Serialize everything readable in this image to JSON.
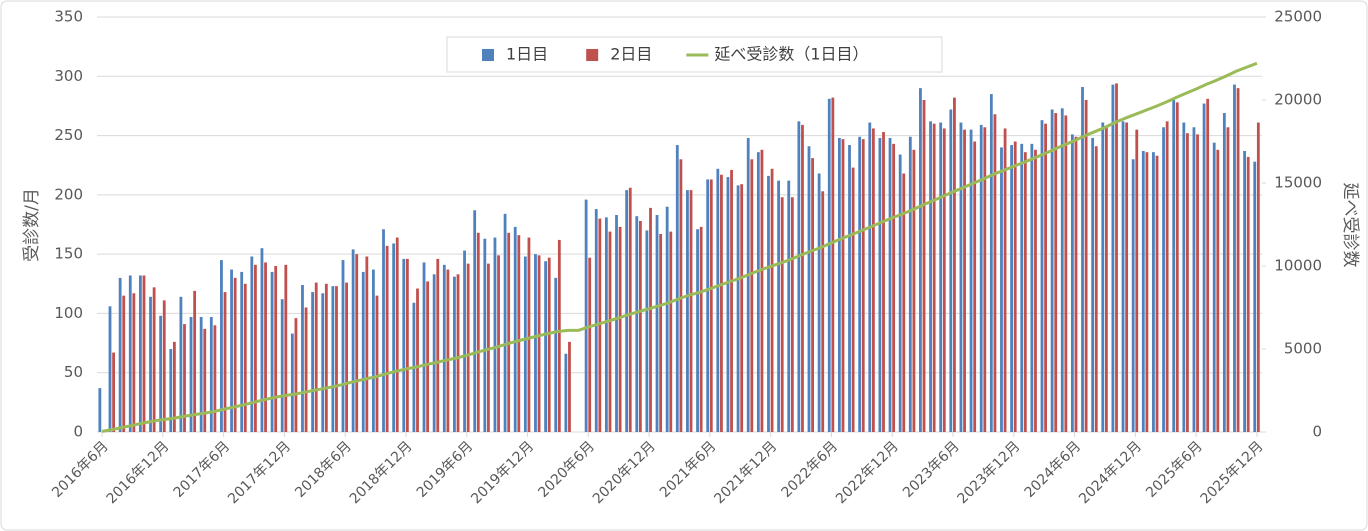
{
  "chart_data": {
    "type": "bar",
    "categories": [
      "2016年6月",
      null,
      null,
      null,
      null,
      null,
      "2016年12月",
      null,
      null,
      null,
      null,
      null,
      "2017年6月",
      null,
      null,
      null,
      null,
      null,
      "2017年12月",
      null,
      null,
      null,
      null,
      null,
      "2018年6月",
      null,
      null,
      null,
      null,
      null,
      "2018年12月",
      null,
      null,
      null,
      null,
      null,
      "2019年6月",
      null,
      null,
      null,
      null,
      null,
      "2019年12月",
      null,
      null,
      null,
      null,
      null,
      "2020年6月",
      null,
      null,
      null,
      null,
      null,
      "2020年12月",
      null,
      null,
      null,
      null,
      null,
      "2021年6月",
      null,
      null,
      null,
      null,
      null,
      "2021年12月",
      null,
      null,
      null,
      null,
      null,
      "2022年6月",
      null,
      null,
      null,
      null,
      null,
      "2022年12月",
      null,
      null,
      null,
      null,
      null,
      "2023年6月",
      null,
      null,
      null,
      null,
      null,
      "2023年12月",
      null,
      null,
      null,
      null,
      null,
      "2024年6月",
      null,
      null,
      null,
      null,
      null,
      "2024年12月",
      null,
      null,
      null,
      null,
      null,
      "2025年6月",
      null,
      null,
      null,
      null,
      null,
      "2025年12月"
    ],
    "series": [
      {
        "name": "1日目",
        "type": "bar",
        "color": "#4f81bd",
        "values": [
          37,
          106,
          130,
          132,
          132,
          114,
          98,
          70,
          114,
          97,
          97,
          97,
          145,
          137,
          135,
          148,
          155,
          135,
          112,
          83,
          124,
          118,
          117,
          123,
          145,
          154,
          135,
          137,
          171,
          159,
          146,
          109,
          143,
          133,
          141,
          131,
          153,
          187,
          163,
          164,
          184,
          173,
          148,
          150,
          144,
          130,
          66,
          null,
          196,
          188,
          181,
          183,
          204,
          182,
          170,
          183,
          190,
          242,
          204,
          171,
          213,
          222,
          215,
          208,
          248,
          236,
          216,
          212,
          212,
          262,
          241,
          218,
          281,
          248,
          242,
          249,
          261,
          248,
          248,
          234,
          249,
          290,
          262,
          261,
          272,
          261,
          255,
          259,
          285,
          240,
          242,
          243,
          243,
          263,
          272,
          273,
          251,
          291,
          248,
          261,
          293,
          262,
          230,
          237,
          236,
          257,
          280,
          261,
          257,
          277,
          244,
          269,
          293,
          237,
          228
        ]
      },
      {
        "name": "2日目",
        "type": "bar",
        "color": "#c0504d",
        "values": [
          null,
          67,
          115,
          117,
          132,
          122,
          111,
          76,
          91,
          119,
          87,
          90,
          118,
          130,
          125,
          141,
          143,
          140,
          141,
          96,
          105,
          126,
          125,
          123,
          126,
          150,
          148,
          115,
          157,
          164,
          146,
          121,
          127,
          146,
          137,
          133,
          142,
          168,
          142,
          149,
          168,
          166,
          164,
          149,
          147,
          162,
          76,
          null,
          147,
          180,
          169,
          173,
          206,
          178,
          189,
          167,
          169,
          230,
          204,
          173,
          213,
          217,
          221,
          209,
          230,
          238,
          222,
          198,
          198,
          259,
          231,
          203,
          282,
          247,
          223,
          247,
          256,
          253,
          243,
          218,
          238,
          280,
          260,
          256,
          282,
          255,
          245,
          257,
          268,
          256,
          245,
          236,
          238,
          260,
          269,
          267,
          249,
          280,
          241,
          258,
          294,
          261,
          255,
          236,
          233,
          262,
          278,
          252,
          251,
          281,
          238,
          257,
          290,
          232,
          261
        ]
      },
      {
        "name": "延べ受診数（1日目）",
        "type": "line",
        "axis": "y2",
        "color": "#9bbb59",
        "values": [
          37,
          143,
          273,
          405,
          537,
          651,
          749,
          819,
          933,
          1030,
          1127,
          1224,
          1369,
          1506,
          1641,
          1789,
          1944,
          2079,
          2191,
          2274,
          2398,
          2516,
          2633,
          2756,
          2901,
          3055,
          3190,
          3327,
          3498,
          3657,
          3803,
          3912,
          4055,
          4188,
          4329,
          4460,
          4613,
          4800,
          4963,
          5127,
          5311,
          5484,
          5632,
          5782,
          5926,
          6056,
          6122,
          6122,
          6318,
          6506,
          6687,
          6870,
          7074,
          7256,
          7426,
          7609,
          7799,
          8041,
          8245,
          8416,
          8629,
          8851,
          9066,
          9274,
          9522,
          9758,
          9974,
          10186,
          10398,
          10660,
          10901,
          11119,
          11400,
          11648,
          11890,
          12139,
          12400,
          12648,
          12896,
          13130,
          13379,
          13669,
          13931,
          14192,
          14464,
          14725,
          14980,
          15239,
          15524,
          15764,
          16006,
          16249,
          16492,
          16755,
          17027,
          17300,
          17551,
          17842,
          18090,
          18351,
          18644,
          18906,
          19136,
          19373,
          19609,
          19866,
          20146,
          20407,
          20664,
          20941,
          21185,
          21454,
          21747,
          21984,
          22212
        ]
      }
    ],
    "ylabel": "受診数/月",
    "y2label": "延べ受診数",
    "ylim": [
      0,
      350
    ],
    "yticks": [
      0,
      50,
      100,
      150,
      200,
      250,
      300,
      350
    ],
    "y2lim": [
      0,
      25000
    ],
    "y2ticks": [
      0,
      5000,
      10000,
      15000,
      20000,
      25000
    ],
    "grid": true,
    "legend": "top"
  }
}
